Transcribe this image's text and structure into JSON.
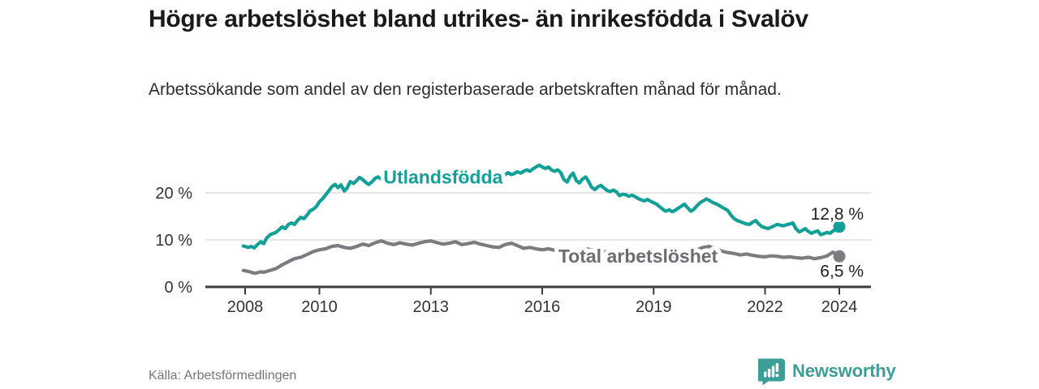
{
  "brand": {
    "name": "Newsworthy",
    "color": "#3c9e97",
    "icon": "speech-bubble-bar-chart-icon"
  },
  "chart_data": {
    "type": "line",
    "title": "Högre arbetslöshet bland utrikes- än inrikesfödda i Svalöv",
    "subtitle": "Arbetssökande som andel av den registerbaserade arbetskraften månad för månad.",
    "source": "Källa: Arbetsförmedlingen",
    "xlabel": "",
    "ylabel": "",
    "x_ticks": [
      2008,
      2010,
      2013,
      2016,
      2019,
      2022,
      2024
    ],
    "y_ticks": [
      {
        "value": 0,
        "label": "0 %"
      },
      {
        "value": 10,
        "label": "10 %"
      },
      {
        "value": 20,
        "label": "20 %"
      }
    ],
    "xlim": [
      2007.9,
      2024.85
    ],
    "ylim": [
      0,
      27.5
    ],
    "grid": "horizontal",
    "legend_position": "inline-labels",
    "series": [
      {
        "name": "Utlandsfödda",
        "color": "#13a096",
        "label_color": "#13a096",
        "label_at": [
          2013.33,
          23.4
        ],
        "end_value": 12.8,
        "end_label": "12,8 %",
        "end_label_side": "above",
        "points": [
          [
            2007.95,
            8.7
          ],
          [
            2008.08,
            8.4
          ],
          [
            2008.17,
            8.6
          ],
          [
            2008.25,
            8.3
          ],
          [
            2008.33,
            9.0
          ],
          [
            2008.42,
            9.6
          ],
          [
            2008.5,
            9.2
          ],
          [
            2008.58,
            10.4
          ],
          [
            2008.67,
            11.1
          ],
          [
            2008.83,
            11.6
          ],
          [
            2008.92,
            12.2
          ],
          [
            2009.0,
            12.8
          ],
          [
            2009.08,
            12.4
          ],
          [
            2009.17,
            13.3
          ],
          [
            2009.25,
            13.6
          ],
          [
            2009.33,
            13.3
          ],
          [
            2009.42,
            14.2
          ],
          [
            2009.5,
            14.8
          ],
          [
            2009.58,
            14.5
          ],
          [
            2009.67,
            15.3
          ],
          [
            2009.75,
            16.2
          ],
          [
            2009.83,
            16.5
          ],
          [
            2009.92,
            17.1
          ],
          [
            2010.0,
            18.1
          ],
          [
            2010.08,
            18.7
          ],
          [
            2010.17,
            19.6
          ],
          [
            2010.25,
            20.4
          ],
          [
            2010.33,
            21.3
          ],
          [
            2010.42,
            21.8
          ],
          [
            2010.5,
            21.1
          ],
          [
            2010.58,
            21.7
          ],
          [
            2010.67,
            20.4
          ],
          [
            2010.75,
            21.1
          ],
          [
            2010.83,
            22.4
          ],
          [
            2010.92,
            22.0
          ],
          [
            2011.0,
            22.6
          ],
          [
            2011.08,
            23.3
          ],
          [
            2011.17,
            22.8
          ],
          [
            2011.25,
            22.2
          ],
          [
            2011.33,
            21.8
          ],
          [
            2011.42,
            22.4
          ],
          [
            2011.5,
            23.1
          ],
          [
            2011.58,
            23.4
          ],
          [
            2011.67,
            22.9
          ],
          [
            2011.83,
            22.4
          ],
          [
            2012.0,
            22.0
          ],
          [
            2012.17,
            22.7
          ],
          [
            2012.33,
            23.1
          ],
          [
            2012.5,
            22.6
          ],
          [
            2012.67,
            22.2
          ],
          [
            2012.83,
            22.8
          ],
          [
            2013.0,
            23.1
          ],
          [
            2013.17,
            22.7
          ],
          [
            2013.33,
            23.0
          ],
          [
            2013.5,
            23.4
          ],
          [
            2013.67,
            22.9
          ],
          [
            2013.83,
            23.1
          ],
          [
            2014.0,
            23.4
          ],
          [
            2014.17,
            23.0
          ],
          [
            2014.33,
            23.2
          ],
          [
            2014.5,
            23.6
          ],
          [
            2014.67,
            23.2
          ],
          [
            2014.83,
            23.8
          ],
          [
            2014.92,
            23.4
          ],
          [
            2015.0,
            23.9
          ],
          [
            2015.08,
            24.3
          ],
          [
            2015.17,
            23.9
          ],
          [
            2015.25,
            24.1
          ],
          [
            2015.33,
            24.5
          ],
          [
            2015.42,
            24.2
          ],
          [
            2015.5,
            24.6
          ],
          [
            2015.58,
            24.9
          ],
          [
            2015.67,
            24.6
          ],
          [
            2015.75,
            25.1
          ],
          [
            2015.83,
            25.5
          ],
          [
            2015.92,
            25.9
          ],
          [
            2016.0,
            25.5
          ],
          [
            2016.08,
            25.2
          ],
          [
            2016.17,
            25.5
          ],
          [
            2016.25,
            24.9
          ],
          [
            2016.33,
            24.6
          ],
          [
            2016.42,
            24.9
          ],
          [
            2016.5,
            24.3
          ],
          [
            2016.58,
            22.9
          ],
          [
            2016.67,
            22.3
          ],
          [
            2016.75,
            23.5
          ],
          [
            2016.83,
            24.2
          ],
          [
            2016.92,
            22.6
          ],
          [
            2017.0,
            22.1
          ],
          [
            2017.08,
            22.9
          ],
          [
            2017.17,
            23.4
          ],
          [
            2017.25,
            22.4
          ],
          [
            2017.33,
            21.2
          ],
          [
            2017.42,
            20.7
          ],
          [
            2017.5,
            21.3
          ],
          [
            2017.58,
            21.6
          ],
          [
            2017.67,
            21.0
          ],
          [
            2017.75,
            20.5
          ],
          [
            2017.83,
            20.3
          ],
          [
            2017.92,
            20.6
          ],
          [
            2018.0,
            20.2
          ],
          [
            2018.08,
            19.4
          ],
          [
            2018.17,
            19.7
          ],
          [
            2018.25,
            19.6
          ],
          [
            2018.33,
            19.3
          ],
          [
            2018.42,
            19.5
          ],
          [
            2018.5,
            19.2
          ],
          [
            2018.58,
            18.8
          ],
          [
            2018.67,
            18.5
          ],
          [
            2018.75,
            18.3
          ],
          [
            2018.83,
            18.6
          ],
          [
            2018.92,
            18.2
          ],
          [
            2019.0,
            17.9
          ],
          [
            2019.08,
            17.6
          ],
          [
            2019.17,
            17.0
          ],
          [
            2019.25,
            16.5
          ],
          [
            2019.33,
            16.1
          ],
          [
            2019.42,
            16.4
          ],
          [
            2019.5,
            16.0
          ],
          [
            2019.58,
            16.3
          ],
          [
            2019.67,
            16.8
          ],
          [
            2019.75,
            17.2
          ],
          [
            2019.83,
            17.6
          ],
          [
            2019.92,
            16.8
          ],
          [
            2020.0,
            16.1
          ],
          [
            2020.08,
            16.5
          ],
          [
            2020.17,
            17.3
          ],
          [
            2020.25,
            17.9
          ],
          [
            2020.33,
            18.3
          ],
          [
            2020.42,
            18.7
          ],
          [
            2020.5,
            18.4
          ],
          [
            2020.58,
            18.0
          ],
          [
            2020.67,
            17.7
          ],
          [
            2020.75,
            17.4
          ],
          [
            2020.83,
            17.0
          ],
          [
            2020.92,
            16.6
          ],
          [
            2021.0,
            16.2
          ],
          [
            2021.08,
            15.3
          ],
          [
            2021.17,
            14.5
          ],
          [
            2021.25,
            14.1
          ],
          [
            2021.33,
            13.9
          ],
          [
            2021.42,
            13.6
          ],
          [
            2021.5,
            13.4
          ],
          [
            2021.58,
            13.3
          ],
          [
            2021.67,
            13.8
          ],
          [
            2021.75,
            14.1
          ],
          [
            2021.83,
            13.4
          ],
          [
            2021.92,
            12.8
          ],
          [
            2022.0,
            12.6
          ],
          [
            2022.08,
            12.4
          ],
          [
            2022.17,
            12.7
          ],
          [
            2022.25,
            13.0
          ],
          [
            2022.33,
            13.3
          ],
          [
            2022.42,
            13.1
          ],
          [
            2022.5,
            13.0
          ],
          [
            2022.58,
            13.2
          ],
          [
            2022.67,
            13.4
          ],
          [
            2022.75,
            13.6
          ],
          [
            2022.83,
            12.4
          ],
          [
            2022.92,
            11.7
          ],
          [
            2023.0,
            12.0
          ],
          [
            2023.08,
            12.4
          ],
          [
            2023.17,
            11.8
          ],
          [
            2023.25,
            11.4
          ],
          [
            2023.33,
            11.7
          ],
          [
            2023.42,
            11.9
          ],
          [
            2023.5,
            11.1
          ],
          [
            2023.58,
            11.3
          ],
          [
            2023.67,
            11.6
          ],
          [
            2023.75,
            11.4
          ],
          [
            2023.83,
            11.9
          ],
          [
            2023.92,
            12.3
          ],
          [
            2024.0,
            12.8
          ]
        ]
      },
      {
        "name": "Total arbetslöshet",
        "color": "#7b7b80",
        "label_color": "#6d6d73",
        "label_at": [
          2018.58,
          6.55
        ],
        "end_value": 6.5,
        "end_label": "6,5 %",
        "end_label_side": "below",
        "points": [
          [
            2007.95,
            3.5
          ],
          [
            2008.08,
            3.3
          ],
          [
            2008.17,
            3.1
          ],
          [
            2008.25,
            2.9
          ],
          [
            2008.33,
            3.0
          ],
          [
            2008.42,
            3.2
          ],
          [
            2008.5,
            3.1
          ],
          [
            2008.58,
            3.3
          ],
          [
            2008.67,
            3.5
          ],
          [
            2008.83,
            3.9
          ],
          [
            2009.0,
            4.7
          ],
          [
            2009.17,
            5.4
          ],
          [
            2009.33,
            6.0
          ],
          [
            2009.5,
            6.3
          ],
          [
            2009.67,
            6.9
          ],
          [
            2009.83,
            7.5
          ],
          [
            2010.0,
            7.9
          ],
          [
            2010.17,
            8.1
          ],
          [
            2010.33,
            8.6
          ],
          [
            2010.5,
            8.8
          ],
          [
            2010.67,
            8.4
          ],
          [
            2010.83,
            8.2
          ],
          [
            2011.0,
            8.6
          ],
          [
            2011.17,
            9.1
          ],
          [
            2011.33,
            8.8
          ],
          [
            2011.5,
            9.4
          ],
          [
            2011.67,
            9.8
          ],
          [
            2011.83,
            9.3
          ],
          [
            2012.0,
            9.0
          ],
          [
            2012.17,
            9.4
          ],
          [
            2012.33,
            9.1
          ],
          [
            2012.5,
            8.9
          ],
          [
            2012.67,
            9.3
          ],
          [
            2012.83,
            9.6
          ],
          [
            2013.0,
            9.8
          ],
          [
            2013.17,
            9.4
          ],
          [
            2013.33,
            9.1
          ],
          [
            2013.5,
            9.3
          ],
          [
            2013.67,
            9.6
          ],
          [
            2013.83,
            9.0
          ],
          [
            2014.0,
            9.2
          ],
          [
            2014.17,
            9.5
          ],
          [
            2014.33,
            9.1
          ],
          [
            2014.5,
            8.8
          ],
          [
            2014.67,
            8.5
          ],
          [
            2014.83,
            8.4
          ],
          [
            2015.0,
            9.0
          ],
          [
            2015.17,
            9.3
          ],
          [
            2015.33,
            8.8
          ],
          [
            2015.5,
            8.2
          ],
          [
            2015.67,
            8.4
          ],
          [
            2015.83,
            8.1
          ],
          [
            2016.0,
            7.9
          ],
          [
            2016.17,
            8.1
          ],
          [
            2016.33,
            7.8
          ],
          [
            2016.5,
            7.6
          ],
          [
            2016.67,
            7.3
          ],
          [
            2016.83,
            7.5
          ],
          [
            2017.0,
            7.8
          ],
          [
            2017.17,
            8.1
          ],
          [
            2017.33,
            7.9
          ],
          [
            2017.5,
            7.7
          ],
          [
            2017.67,
            7.5
          ],
          [
            2017.83,
            7.3
          ],
          [
            2018.0,
            7.1
          ],
          [
            2018.17,
            7.3
          ],
          [
            2018.33,
            7.0
          ],
          [
            2018.5,
            6.8
          ],
          [
            2018.67,
            6.9
          ],
          [
            2018.83,
            6.7
          ],
          [
            2019.0,
            6.8
          ],
          [
            2019.17,
            6.6
          ],
          [
            2019.33,
            6.4
          ],
          [
            2019.5,
            6.6
          ],
          [
            2019.67,
            6.8
          ],
          [
            2019.83,
            7.0
          ],
          [
            2020.0,
            7.3
          ],
          [
            2020.17,
            7.9
          ],
          [
            2020.33,
            8.4
          ],
          [
            2020.5,
            8.6
          ],
          [
            2020.67,
            8.1
          ],
          [
            2020.83,
            7.6
          ],
          [
            2021.0,
            7.3
          ],
          [
            2021.17,
            7.1
          ],
          [
            2021.33,
            6.8
          ],
          [
            2021.5,
            7.0
          ],
          [
            2021.67,
            6.7
          ],
          [
            2021.83,
            6.5
          ],
          [
            2022.0,
            6.4
          ],
          [
            2022.17,
            6.6
          ],
          [
            2022.33,
            6.5
          ],
          [
            2022.5,
            6.3
          ],
          [
            2022.67,
            6.4
          ],
          [
            2022.83,
            6.2
          ],
          [
            2023.0,
            6.1
          ],
          [
            2023.17,
            6.3
          ],
          [
            2023.33,
            6.0
          ],
          [
            2023.5,
            6.2
          ],
          [
            2023.67,
            6.6
          ],
          [
            2023.83,
            7.4
          ],
          [
            2024.0,
            6.5
          ]
        ]
      }
    ]
  }
}
